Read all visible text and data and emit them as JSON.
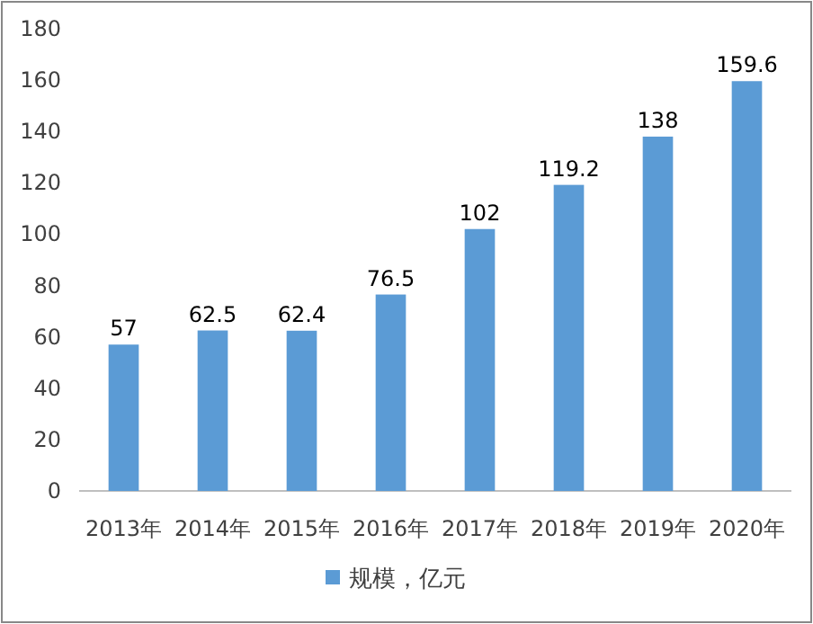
{
  "chart_data": {
    "type": "bar",
    "categories": [
      "2013年",
      "2014年",
      "2015年",
      "2016年",
      "2017年",
      "2018年",
      "2019年",
      "2020年"
    ],
    "series": [
      {
        "name": "规模，亿元",
        "color": "#5b9bd5",
        "values": [
          57,
          62.5,
          62.4,
          76.5,
          102,
          119.2,
          138,
          159.6
        ]
      }
    ],
    "ylim": [
      0,
      180
    ],
    "yticks": [
      0,
      20,
      40,
      60,
      80,
      100,
      120,
      140,
      160,
      180
    ],
    "data_labels": true,
    "legend": "bottom"
  }
}
